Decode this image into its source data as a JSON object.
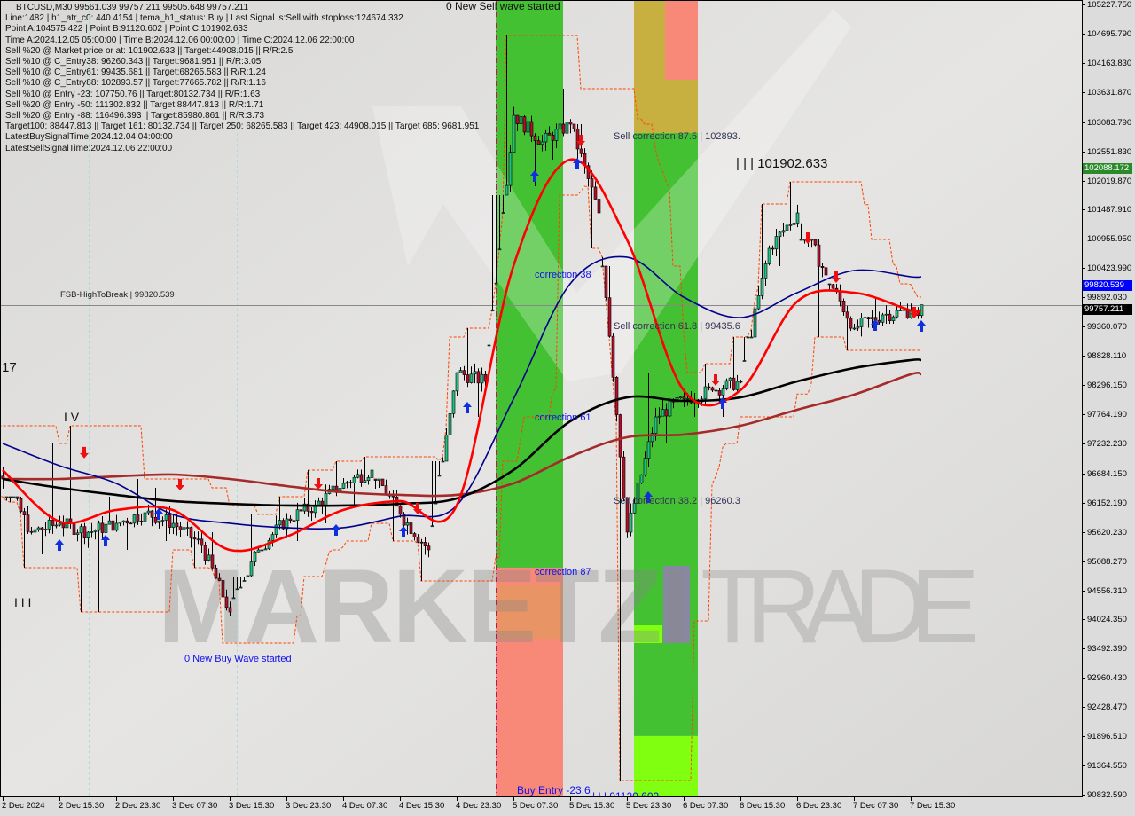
{
  "header": {
    "title": "BTCUSD,M30  99561.039 99757.211 99505.648 99757.211",
    "lines": [
      "Line:1482 | h1_atr_c0: 440.4154 | tema_h1_status: Buy | Last Signal is:Sell with stoploss:124674.332",
      "Point A:104575.422 | Point B:91120.602 | Point C:101902.633",
      "Time A:2024.12.05 05:00:00 | Time B:2024.12.06 00:00:00 | Time C:2024.12.06 22:00:00",
      "Sell %20 @ Market price or at: 101902.633 || Target:44908.015 || R/R:2.5",
      "Sell %10 @ C_Entry38: 96260.343 || Target:9681.951 || R/R:3.05",
      "Sell %10 @ C_Entry61: 99435.681 || Target:68265.583 || R/R:1.24",
      "Sell %10 @ C_Entry88: 102893.57 || Target:77665.782 || R/R:1.16",
      "Sell %10 @ Entry -23: 107750.76 || Target:80132.734 || R/R:1.63",
      "Sell %20 @ Entry -50: 111302.832 || Target:88447.813 || R/R:1.71",
      "Sell %20 @ Entry -88: 116496.393 || Target:85980.861 || R/R:3.73",
      "Target100: 88447.813 || Target 161: 80132.734 || Target 250: 68265.583 || Target 423: 44908.015 || Target 685: 9681.951",
      "LatestBuySignalTime:2024.12.04 04:00:00",
      "LatestSellSignalTime:2024.12.06 22:00:00"
    ]
  },
  "annotations": {
    "sell_wave": "0 New Sell wave started",
    "buy_wave": "0 New Buy Wave started",
    "sell_corr_875": "Sell correction 87.5 | 102893.",
    "point_c": "| | | 101902.633",
    "corr_38": "correction 38",
    "sell_corr_618": "Sell correction 61.8 | 99435.6",
    "corr_61": "correction 61",
    "sell_corr_382": "Sell correction 38.2 | 96260.3",
    "corr_87": "correction 87",
    "buy_entry": "Buy Entry -23.6",
    "point_b": "| | | 91120.602",
    "fsb": "FSB-HighToBreak | 99820.539",
    "wave_17": "17",
    "wave_iv": "I V",
    "wave_iii": "I I I"
  },
  "watermark": {
    "bold": "MARKETZI",
    "thin": "TRADE"
  },
  "price_tags": {
    "green": {
      "value": "102088.172",
      "color": "#2a8a2a"
    },
    "blue": {
      "value": "99820.539",
      "color": "#0000ff"
    },
    "black": {
      "value": "99757.211",
      "color": "#000000"
    }
  },
  "chart_data": {
    "type": "candlestick",
    "symbol": "BTCUSD",
    "timeframe": "M30",
    "ylim": [
      90832.59,
      105227.75
    ],
    "y_ticks": [
      "105227.750",
      "104695.790",
      "104163.830",
      "103631.870",
      "103083.790",
      "102551.830",
      "102019.870",
      "101487.910",
      "100955.950",
      "100423.990",
      "99892.030",
      "99360.070",
      "98828.110",
      "98296.150",
      "97764.190",
      "97232.230",
      "96684.150",
      "96152.190",
      "95620.230",
      "95088.270",
      "94556.310",
      "94024.350",
      "93492.390",
      "92960.430",
      "92428.470",
      "91896.510",
      "91364.550",
      "90832.590"
    ],
    "x_ticks": [
      {
        "label": "2 Dec 2024",
        "time": "2024-12-02 07:30"
      },
      {
        "label": "2 Dec 15:30",
        "time": "2024-12-02 15:30"
      },
      {
        "label": "2 Dec 23:30",
        "time": "2024-12-02 23:30"
      },
      {
        "label": "3 Dec 07:30",
        "time": "2024-12-03 07:30"
      },
      {
        "label": "3 Dec 15:30",
        "time": "2024-12-03 15:30"
      },
      {
        "label": "3 Dec 23:30",
        "time": "2024-12-03 23:30"
      },
      {
        "label": "4 Dec 07:30",
        "time": "2024-12-04 07:30"
      },
      {
        "label": "4 Dec 15:30",
        "time": "2024-12-04 15:30"
      },
      {
        "label": "4 Dec 23:30",
        "time": "2024-12-04 23:30"
      },
      {
        "label": "5 Dec 07:30",
        "time": "2024-12-05 07:30"
      },
      {
        "label": "5 Dec 15:30",
        "time": "2024-12-05 15:30"
      },
      {
        "label": "5 Dec 23:30",
        "time": "2024-12-05 23:30"
      },
      {
        "label": "6 Dec 07:30",
        "time": "2024-12-06 07:30"
      },
      {
        "label": "6 Dec 15:30",
        "time": "2024-12-06 15:30"
      },
      {
        "label": "6 Dec 23:30",
        "time": "2024-12-06 23:30"
      },
      {
        "label": "7 Dec 07:30",
        "time": "2024-12-07 07:30"
      },
      {
        "label": "7 Dec 15:30",
        "time": "2024-12-07 15:30"
      }
    ],
    "ohlc_4h": {
      "time": [
        "2024-12-02 07:30",
        "2024-12-02 11:30",
        "2024-12-02 15:30",
        "2024-12-02 19:30",
        "2024-12-02 23:30",
        "2024-12-03 03:30",
        "2024-12-03 07:30",
        "2024-12-03 11:30",
        "2024-12-03 15:30",
        "2024-12-03 19:30",
        "2024-12-03 23:30",
        "2024-12-04 03:30",
        "2024-12-04 07:30",
        "2024-12-04 11:30",
        "2024-12-04 15:30",
        "2024-12-04 19:30",
        "2024-12-04 23:30",
        "2024-12-05 03:30",
        "2024-12-05 07:30",
        "2024-12-05 11:30",
        "2024-12-05 15:30",
        "2024-12-05 19:30",
        "2024-12-05 23:30",
        "2024-12-06 03:30",
        "2024-12-06 07:30",
        "2024-12-06 11:30",
        "2024-12-06 15:30",
        "2024-12-06 19:30",
        "2024-12-06 23:30",
        "2024-12-07 03:30",
        "2024-12-07 07:30",
        "2024-12-07 11:30",
        "2024-12-07 15:30"
      ],
      "close": [
        96584,
        95615,
        95777,
        95615,
        95777,
        95970,
        95777,
        95373,
        94161,
        95292,
        95857,
        96100,
        96504,
        96746,
        95938,
        95292,
        98523,
        98361,
        103208,
        102724,
        103047,
        101431,
        95615,
        97715,
        98038,
        98200,
        98361,
        100785,
        101431,
        100300,
        99331,
        99573,
        99654
      ],
      "high": [
        97554,
        96261,
        97231,
        97554,
        96261,
        96584,
        96423,
        96100,
        95615,
        95938,
        96261,
        96746,
        96907,
        96988,
        96584,
        96261,
        99169,
        99331,
        104662,
        103208,
        103693,
        103047,
        100462,
        98523,
        98361,
        98685,
        99169,
        101593,
        101997,
        100946,
        100139,
        99896,
        99816
      ],
      "low": [
        96261,
        94969,
        95211,
        94161,
        94161,
        95292,
        95453,
        94969,
        93595,
        94807,
        95292,
        95453,
        95777,
        96100,
        95453,
        94726,
        96907,
        97715,
        101754,
        101916,
        102400,
        100785,
        91091,
        93999,
        97231,
        97715,
        97715,
        99169,
        100462,
        99169,
        98927,
        99088,
        99412
      ]
    },
    "last_bar": {
      "time": "2024-12-07 17:00",
      "open": 99561.039,
      "high": 99757.211,
      "low": 99505.648,
      "close": 99757.211
    },
    "moving_averages": {
      "time": [
        "2024-12-02 07:30",
        "2024-12-02 15:30",
        "2024-12-02 23:30",
        "2024-12-03 07:30",
        "2024-12-03 15:30",
        "2024-12-03 23:30",
        "2024-12-04 07:30",
        "2024-12-04 15:30",
        "2024-12-04 23:30",
        "2024-12-05 07:30",
        "2024-12-05 15:30",
        "2024-12-05 23:30",
        "2024-12-06 07:30",
        "2024-12-06 15:30",
        "2024-12-06 23:30",
        "2024-12-07 07:30",
        "2024-12-07 15:30"
      ],
      "series": [
        {
          "color": "#a52a2a",
          "values": [
            96584,
            96584,
            96632,
            96665,
            96584,
            96455,
            96342,
            96294,
            96294,
            96504,
            96988,
            97344,
            97393,
            97554,
            97845,
            98119,
            98491
          ]
        },
        {
          "color": "#000000",
          "values": [
            96584,
            96423,
            96294,
            96181,
            96132,
            96100,
            96100,
            96132,
            96229,
            96746,
            97634,
            98070,
            98006,
            98070,
            98361,
            98604,
            98749
          ]
        },
        {
          "color": "#00008b",
          "values": [
            97231,
            96827,
            96504,
            95938,
            95777,
            95696,
            95696,
            95905,
            96100,
            98038,
            100139,
            100624,
            99896,
            99524,
            99977,
            100381,
            100268
          ]
        },
        {
          "color": "#ff0000",
          "values": [
            96746,
            95809,
            96019,
            96019,
            95292,
            95534,
            96019,
            96181,
            96100,
            100462,
            102400,
            100946,
            98200,
            98200,
            99816,
            99977,
            99654
          ]
        }
      ]
    },
    "levels": [
      {
        "price": 102088.172,
        "color": "#2a7a2a",
        "style": "dashed"
      },
      {
        "price": 99820.539,
        "color": "#0000aa",
        "style": "dashed"
      },
      {
        "price": 99757.211,
        "color": "#888888",
        "style": "solid"
      }
    ],
    "zones": [
      {
        "start": "2024-12-05 05:00",
        "end": "2024-12-05 14:30",
        "upper_color": "#44c033",
        "lower_color": "#f88878",
        "split_price": 94969
      },
      {
        "start": "2024-12-06 00:30",
        "end": "2024-12-06 09:30",
        "top_color": "#c8b040",
        "mid_color": "#44c033",
        "bottom_color": "#80ff10",
        "top_split": 102886,
        "bottom_split": 91900
      }
    ],
    "buy_signals": [
      {
        "time": "2024-12-02 15:30",
        "price": 95373
      },
      {
        "time": "2024-12-02 22:00",
        "price": 95453
      },
      {
        "time": "2024-12-03 05:30",
        "price": 95938
      },
      {
        "time": "2024-12-04 06:30",
        "price": 95648
      },
      {
        "time": "2024-12-04 16:00",
        "price": 95615
      },
      {
        "time": "2024-12-05 01:00",
        "price": 97877
      },
      {
        "time": "2024-12-05 10:30",
        "price": 102094
      },
      {
        "time": "2024-12-05 16:30",
        "price": 102319
      },
      {
        "time": "2024-12-06 02:30",
        "price": 96245
      },
      {
        "time": "2024-12-06 13:00",
        "price": 97958
      },
      {
        "time": "2024-12-07 10:30",
        "price": 99379
      },
      {
        "time": "2024-12-07 17:00",
        "price": 99363
      }
    ],
    "sell_signals": [
      {
        "time": "2024-12-02 19:00",
        "price": 97070
      },
      {
        "time": "2024-12-03 08:30",
        "price": 96488
      },
      {
        "time": "2024-12-04 04:00",
        "price": 96504
      },
      {
        "time": "2024-12-04 18:00",
        "price": 96052
      },
      {
        "time": "2024-12-05 17:00",
        "price": 102756
      },
      {
        "time": "2024-12-06 12:00",
        "price": 98393
      },
      {
        "time": "2024-12-07 01:00",
        "price": 100979
      },
      {
        "time": "2024-12-07 05:00",
        "price": 100268
      },
      {
        "time": "2024-12-07 16:00",
        "price": 99622
      }
    ],
    "colors": {
      "bull": "#20c080",
      "bear": "#b0102a",
      "channel": "#ff4400",
      "signal_line": "#c0106a"
    }
  }
}
